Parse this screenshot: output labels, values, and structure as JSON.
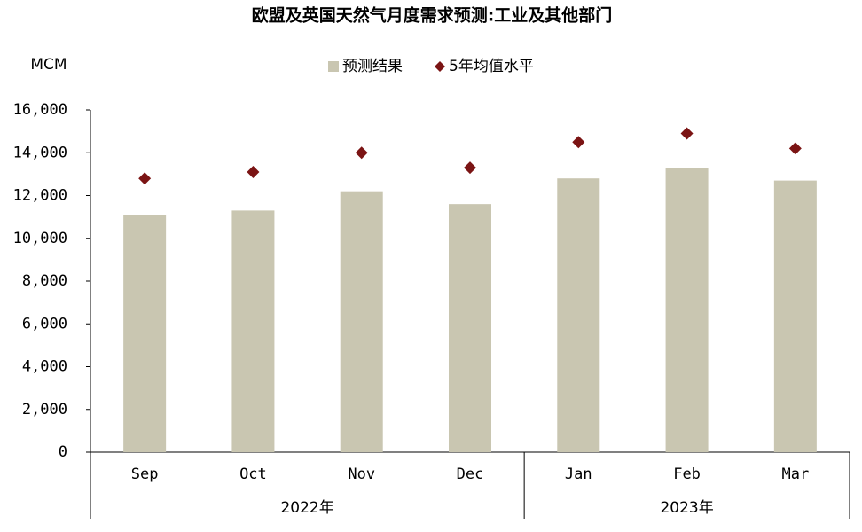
{
  "chart_data": {
    "type": "bar",
    "title": "欧盟及英国天然气月度需求预测:工业及其他部门",
    "y_label": "MCM",
    "categories": [
      "Sep",
      "Oct",
      "Nov",
      "Dec",
      "Jan",
      "Feb",
      "Mar"
    ],
    "groups": [
      {
        "label": "2022年",
        "count": 4
      },
      {
        "label": "2023年",
        "count": 3
      }
    ],
    "series": [
      {
        "name": "预测结果",
        "type": "bar",
        "color": "#c9c6b1",
        "values": [
          11100,
          11300,
          12200,
          11600,
          12800,
          13300,
          12700
        ]
      },
      {
        "name": "5年均值水平",
        "type": "scatter",
        "marker": "diamond",
        "color": "#7b1414",
        "values": [
          12800,
          13100,
          14000,
          13300,
          14500,
          14900,
          14200
        ]
      }
    ],
    "ylim": [
      0,
      16000
    ],
    "yticks": [
      0,
      {
        "value": 2000,
        "label": "2,000"
      },
      {
        "value": 4000,
        "label": "4,000"
      },
      {
        "value": 6000,
        "label": "6,000"
      },
      {
        "value": 8000,
        "label": "8,000"
      },
      {
        "value": 10000,
        "label": "10,000"
      },
      {
        "value": 12000,
        "label": "12,000"
      },
      {
        "value": 14000,
        "label": "14,000"
      },
      {
        "value": 16000,
        "label": "16,000"
      }
    ],
    "grid": false,
    "legend": "top"
  }
}
